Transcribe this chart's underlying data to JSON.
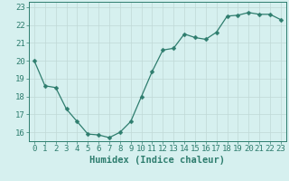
{
  "x": [
    0,
    1,
    2,
    3,
    4,
    5,
    6,
    7,
    8,
    9,
    10,
    11,
    12,
    13,
    14,
    15,
    16,
    17,
    18,
    19,
    20,
    21,
    22,
    23
  ],
  "y": [
    20.0,
    18.6,
    18.5,
    17.3,
    16.6,
    15.9,
    15.85,
    15.7,
    16.0,
    16.6,
    18.0,
    19.4,
    20.6,
    20.7,
    21.5,
    21.3,
    21.2,
    21.6,
    22.5,
    22.55,
    22.7,
    22.6,
    22.6,
    22.3
  ],
  "line_color": "#2e7d6e",
  "marker": "D",
  "marker_size": 2.5,
  "bg_color": "#d6f0ef",
  "grid_color": "#c0d8d6",
  "tick_color": "#2e7d6e",
  "xlabel": "Humidex (Indice chaleur)",
  "ylim": [
    15.5,
    23.3
  ],
  "xlim": [
    -0.5,
    23.5
  ],
  "yticks": [
    16,
    17,
    18,
    19,
    20,
    21,
    22,
    23
  ],
  "xticks": [
    0,
    1,
    2,
    3,
    4,
    5,
    6,
    7,
    8,
    9,
    10,
    11,
    12,
    13,
    14,
    15,
    16,
    17,
    18,
    19,
    20,
    21,
    22,
    23
  ],
  "xlabel_fontsize": 7.5,
  "tick_fontsize": 6.5
}
